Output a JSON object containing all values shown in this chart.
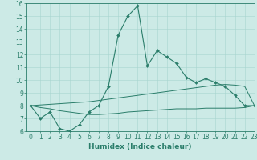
{
  "xlabel": "Humidex (Indice chaleur)",
  "x": [
    0,
    1,
    2,
    3,
    4,
    5,
    6,
    7,
    8,
    9,
    10,
    11,
    12,
    13,
    14,
    15,
    16,
    17,
    18,
    19,
    20,
    21,
    22,
    23
  ],
  "line_main": [
    8.0,
    7.0,
    7.5,
    6.2,
    6.0,
    6.5,
    7.5,
    8.0,
    9.5,
    13.5,
    15.0,
    15.8,
    11.1,
    12.3,
    11.8,
    11.3,
    10.2,
    9.8,
    10.1,
    9.8,
    9.5,
    8.8,
    8.0,
    8.0
  ],
  "line_upper": [
    8.0,
    8.05,
    8.1,
    8.15,
    8.2,
    8.25,
    8.3,
    8.4,
    8.5,
    8.6,
    8.7,
    8.8,
    8.9,
    9.0,
    9.1,
    9.2,
    9.3,
    9.4,
    9.5,
    9.6,
    9.65,
    9.6,
    9.5,
    8.0
  ],
  "line_lower": [
    8.0,
    7.85,
    7.75,
    7.6,
    7.5,
    7.4,
    7.3,
    7.3,
    7.35,
    7.4,
    7.5,
    7.55,
    7.6,
    7.65,
    7.7,
    7.75,
    7.75,
    7.75,
    7.8,
    7.8,
    7.8,
    7.8,
    7.85,
    8.0
  ],
  "line_color": "#2a7d6a",
  "bg_color": "#cceae6",
  "grid_color": "#a8d5cf",
  "ylim": [
    6,
    16
  ],
  "xlim": [
    -0.5,
    23
  ],
  "yticks": [
    6,
    7,
    8,
    9,
    10,
    11,
    12,
    13,
    14,
    15,
    16
  ],
  "xticks": [
    0,
    1,
    2,
    3,
    4,
    5,
    6,
    7,
    8,
    9,
    10,
    11,
    12,
    13,
    14,
    15,
    16,
    17,
    18,
    19,
    20,
    21,
    22,
    23
  ],
  "tick_fontsize": 5.5,
  "label_fontsize": 6.5
}
